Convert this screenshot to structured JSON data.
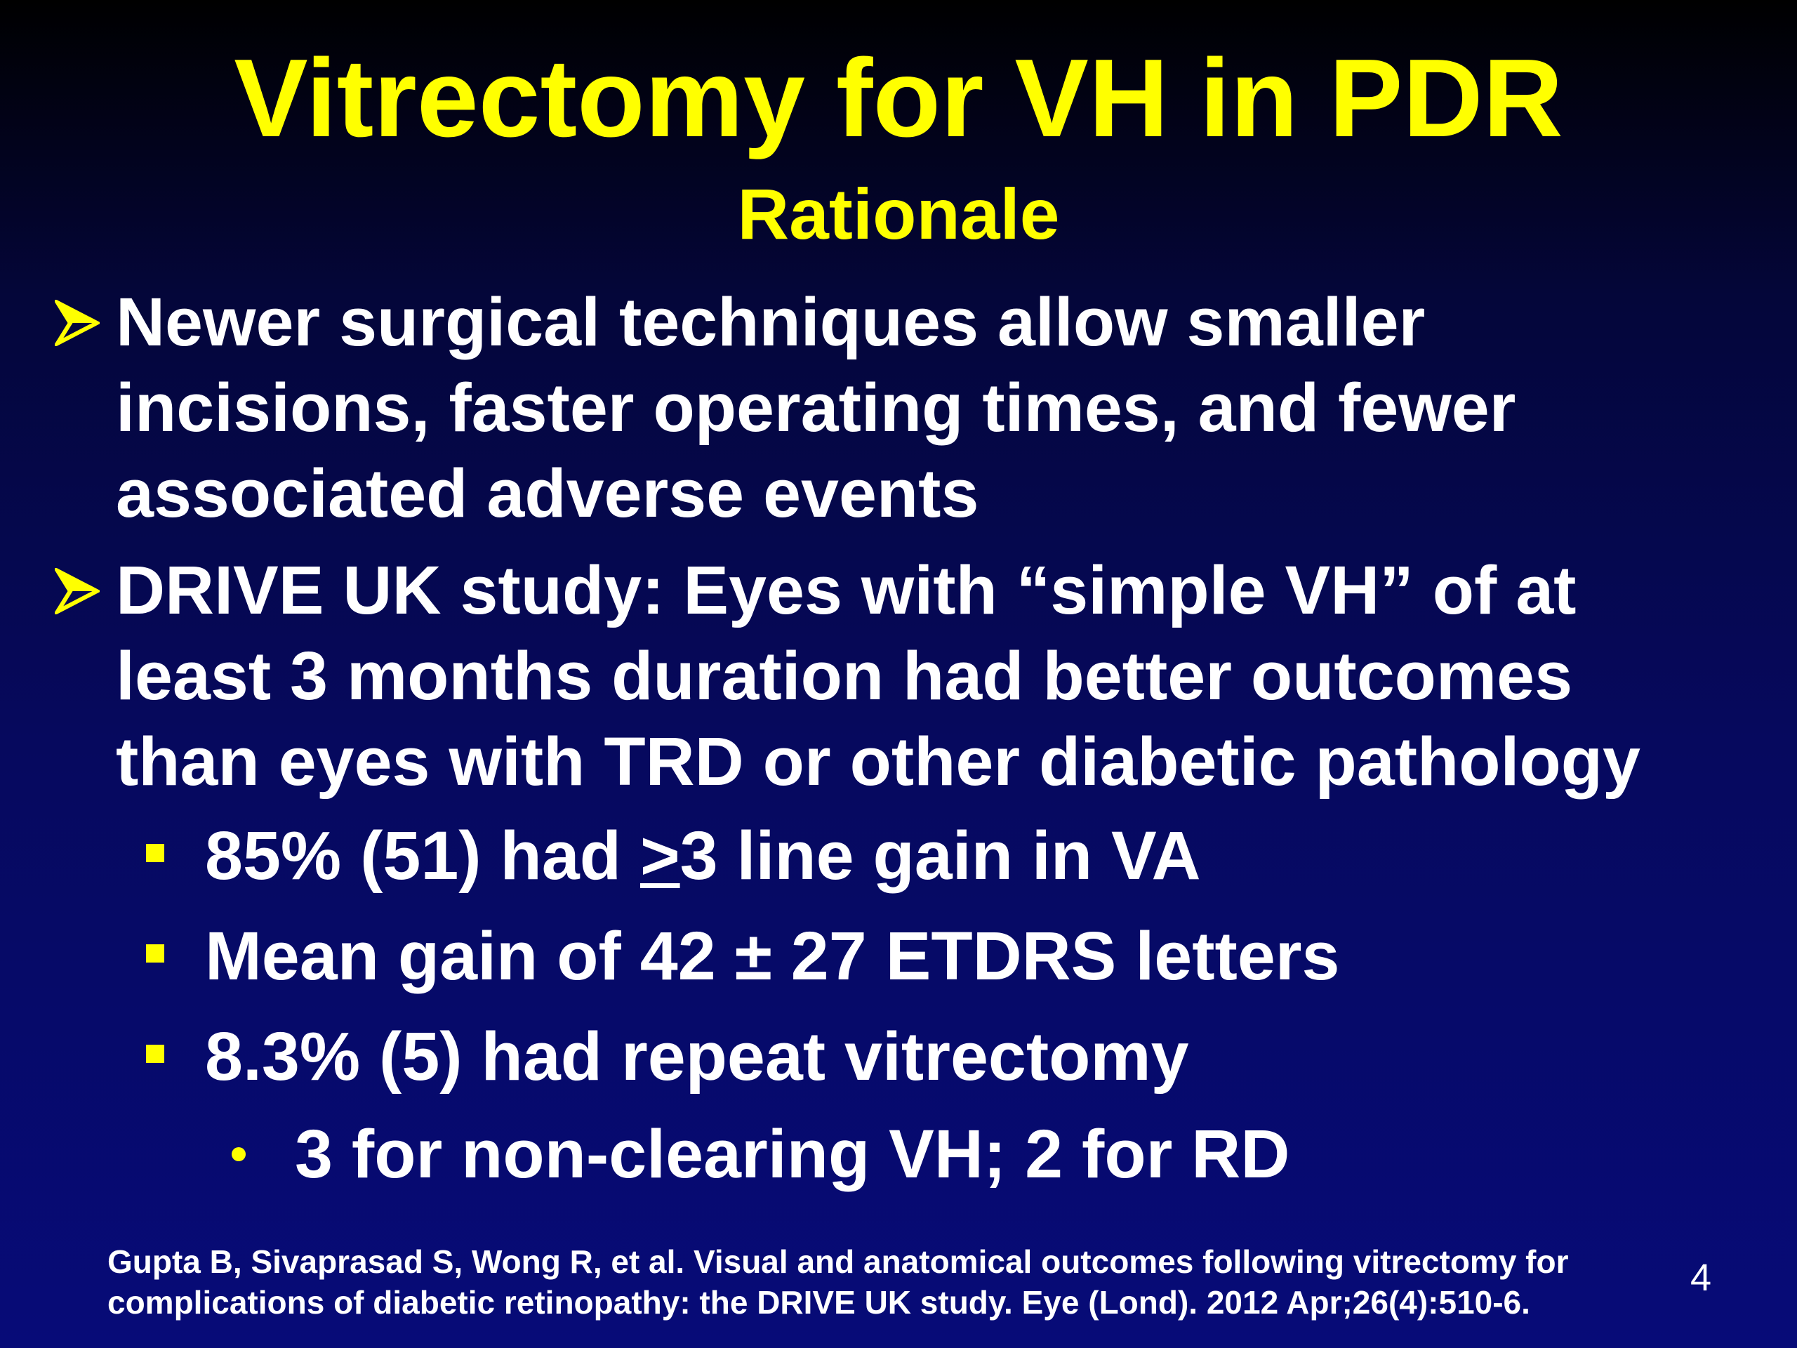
{
  "slide": {
    "title": "Vitrectomy for VH in PDR",
    "subtitle": "Rationale",
    "bullets": [
      {
        "lines": [
          "Newer surgical techniques allow smaller",
          "incisions, faster operating times, and fewer",
          "associated adverse events"
        ]
      },
      {
        "lines": [
          "DRIVE UK study:  Eyes with “simple VH” of at",
          "least 3 months duration had better outcomes",
          "than eyes with TRD or other diabetic pathology"
        ],
        "sub_bullets": [
          {
            "prefix": "85% (51) had ",
            "symbol": ">",
            "suffix": "3 line gain in VA"
          },
          {
            "text": "Mean gain of 42 ± 27 ETDRS letters"
          },
          {
            "text": "8.3% (5) had repeat vitrectomy"
          }
        ],
        "sub_sub_bullets": [
          "3 for non-clearing VH; 2 for RD"
        ]
      }
    ],
    "citation": [
      "Gupta B, Sivaprasad S, Wong R, et al. Visual and anatomical outcomes following vitrectomy for",
      "complications of diabetic retinopathy: the DRIVE UK study. Eye (Lond). 2012 Apr;26(4):510-6."
    ],
    "page_number": "4"
  },
  "icons": {
    "level1_bullet": "arrow-bullet-icon",
    "level2_bullet": "square-bullet-icon",
    "level3_bullet": "dot-bullet-icon"
  },
  "colors": {
    "background_top": "#000000",
    "background_bottom": "#070b78",
    "title": "#ffff00",
    "body_text": "#ffffff",
    "bullet": "#ffff00"
  }
}
